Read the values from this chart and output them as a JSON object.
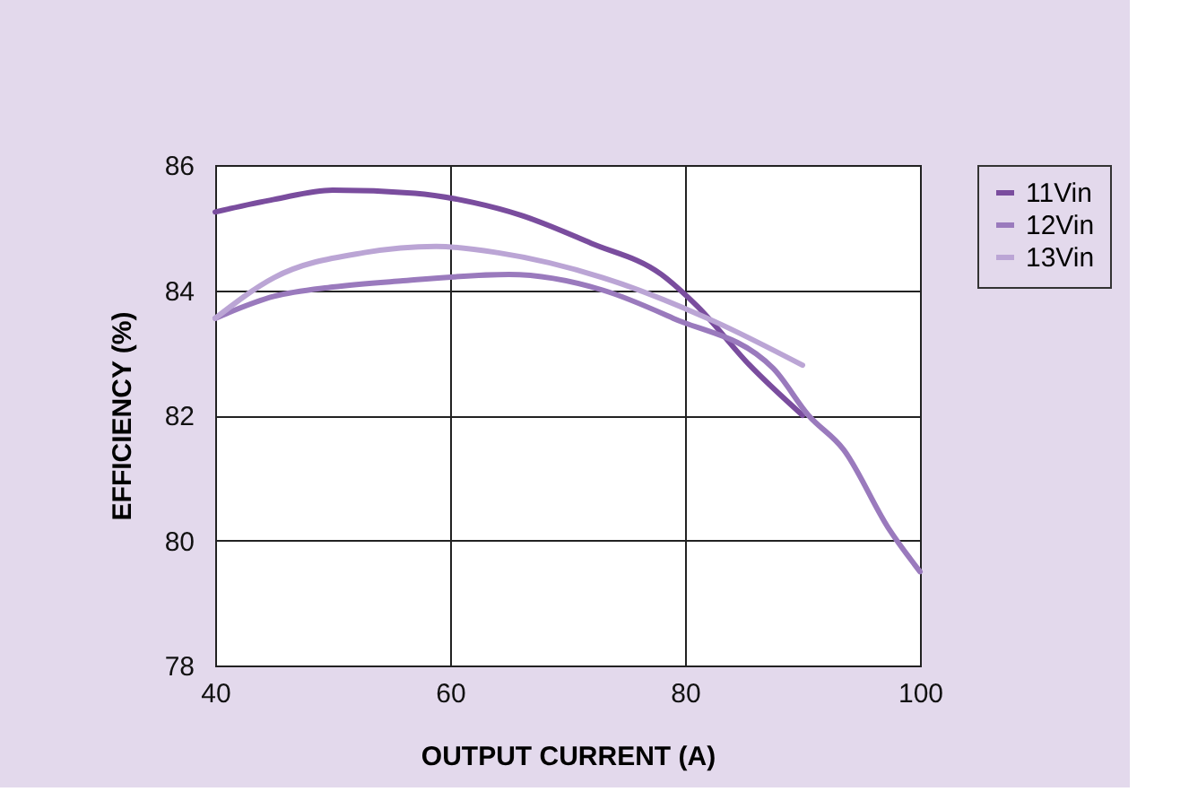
{
  "chart_data": {
    "type": "line",
    "xlabel": "OUTPUT CURRENT (A)",
    "ylabel": "EFFICIENCY (%)",
    "xlim": [
      40,
      100
    ],
    "xticks": [
      40,
      60,
      80,
      100
    ],
    "ylim": [
      78,
      86
    ],
    "yticks": [
      78,
      80,
      82,
      84,
      86
    ],
    "grid": true,
    "legend": "right",
    "line_style": "solid",
    "series": [
      {
        "name": "11Vin",
        "color": "#7a4d9e",
        "x": [
          40,
          45,
          50,
          57,
          62,
          66,
          72,
          78,
          81,
          85.5,
          90
        ],
        "values": [
          85.25,
          85.45,
          85.6,
          85.55,
          85.4,
          85.2,
          84.75,
          84.25,
          83.75,
          82.8,
          82
        ]
      },
      {
        "name": "12Vin",
        "color": "#9a7abd",
        "x": [
          40,
          45,
          50,
          56,
          65,
          73,
          79,
          87.5,
          90.5,
          93.5,
          97.3,
          100
        ],
        "values": [
          83.55,
          83.9,
          84.05,
          84.15,
          84.25,
          84,
          83.55,
          82.75,
          82,
          81.45,
          80.2,
          79.5
        ]
      },
      {
        "name": "13Vin",
        "color": "#bba5d5",
        "x": [
          40,
          45,
          52.7,
          58.8,
          64,
          73,
          82.5,
          90
        ],
        "values": [
          83.55,
          84.2,
          84.6,
          84.7,
          84.6,
          84.2,
          83.5,
          82.8
        ]
      }
    ]
  }
}
